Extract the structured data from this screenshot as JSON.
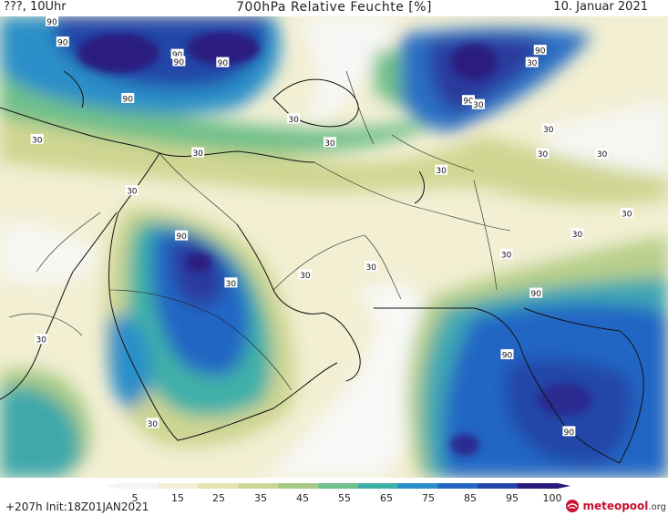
{
  "header": {
    "left": "???, 10Uhr",
    "title": "700hPa Relative Feuchte [%]",
    "date": "10. Januar 2021"
  },
  "footer": {
    "run_info": "+207h  Init:18Z01JAN2021",
    "logo_brand": "meteopool",
    "logo_suffix": ".org"
  },
  "colorbar": {
    "ticks": [
      "5",
      "15",
      "25",
      "35",
      "45",
      "55",
      "65",
      "75",
      "85",
      "95",
      "100"
    ],
    "colors": [
      "#f4f4f2",
      "#f2efd2",
      "#e6e2b4",
      "#cdd694",
      "#a6ca84",
      "#6fc08a",
      "#3fb0a8",
      "#2a8fc8",
      "#2466c4",
      "#2446a8",
      "#281a7a"
    ]
  },
  "map_labels": [
    {
      "text": "90",
      "lon": 17.6,
      "lat": 42.5
    },
    {
      "text": "90",
      "lon": 16.3,
      "lat": 44.5
    },
    {
      "text": "90",
      "lon": 31.5,
      "lat": 41.3
    },
    {
      "text": "90",
      "lon": 31.7,
      "lat": 40.6
    },
    {
      "text": "90",
      "lon": 37.0,
      "lat": 40.5
    },
    {
      "text": "90",
      "lon": 25.5,
      "lat": 37.0
    },
    {
      "text": "90",
      "lon": 75.5,
      "lat": 41.7
    },
    {
      "text": "30",
      "lon": 74.5,
      "lat": 40.5
    },
    {
      "text": "30",
      "lon": 45.6,
      "lat": 35.0
    },
    {
      "text": "90",
      "lon": 66.8,
      "lat": 36.8
    },
    {
      "text": "30",
      "lon": 68.0,
      "lat": 36.4
    },
    {
      "text": "30",
      "lon": 76.5,
      "lat": 34.0
    },
    {
      "text": "30",
      "lon": 14.5,
      "lat": 33.0
    },
    {
      "text": "30",
      "lon": 34.0,
      "lat": 31.7
    },
    {
      "text": "30",
      "lon": 50.0,
      "lat": 32.7
    },
    {
      "text": "30",
      "lon": 63.5,
      "lat": 30.0
    },
    {
      "text": "30",
      "lon": 83.0,
      "lat": 31.6
    },
    {
      "text": "30",
      "lon": 75.8,
      "lat": 31.6
    },
    {
      "text": "30",
      "lon": 26.0,
      "lat": 28.0
    },
    {
      "text": "90",
      "lon": 32.0,
      "lat": 23.6
    },
    {
      "text": "30",
      "lon": 86.0,
      "lat": 25.8
    },
    {
      "text": "30",
      "lon": 80.0,
      "lat": 23.8
    },
    {
      "text": "30",
      "lon": 71.4,
      "lat": 21.8
    },
    {
      "text": "30",
      "lon": 47.0,
      "lat": 19.8
    },
    {
      "text": "30",
      "lon": 38.0,
      "lat": 19.0
    },
    {
      "text": "30",
      "lon": 55.0,
      "lat": 20.6
    },
    {
      "text": "90",
      "lon": 75.0,
      "lat": 18.0
    },
    {
      "text": "30",
      "lon": 15.0,
      "lat": 13.5
    },
    {
      "text": "90",
      "lon": 71.5,
      "lat": 12.0
    },
    {
      "text": "30",
      "lon": 28.5,
      "lat": 5.3
    },
    {
      "text": "90",
      "lon": 79.0,
      "lat": 4.5
    }
  ]
}
